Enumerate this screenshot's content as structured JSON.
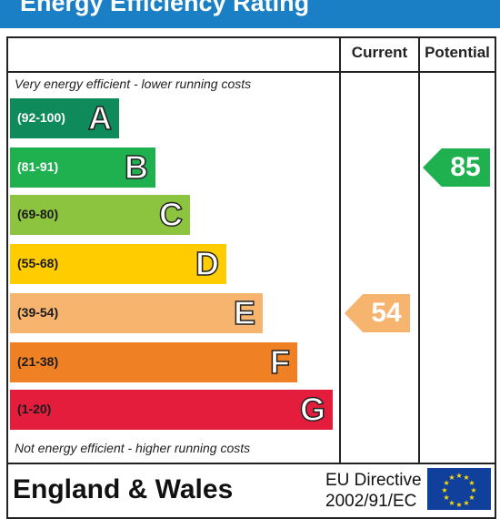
{
  "header": {
    "title": "Energy Efficiency Rating"
  },
  "columns": {
    "current": "Current",
    "potential": "Potential"
  },
  "notes": {
    "top": "Very energy efficient - lower running costs",
    "bottom": "Not energy efficient - higher running costs"
  },
  "bands": [
    {
      "range": "(92-100)",
      "letter": "A",
      "color": "#0f8a5b",
      "light_text": true
    },
    {
      "range": "(81-91)",
      "letter": "B",
      "color": "#1fb14f",
      "light_text": true
    },
    {
      "range": "(69-80)",
      "letter": "C",
      "color": "#8cc43f",
      "light_text": false
    },
    {
      "range": "(55-68)",
      "letter": "D",
      "color": "#ffcc00",
      "light_text": false
    },
    {
      "range": "(39-54)",
      "letter": "E",
      "color": "#f7b46f",
      "light_text": false
    },
    {
      "range": "(21-38)",
      "letter": "F",
      "color": "#ef8023",
      "light_text": false
    },
    {
      "range": "(1-20)",
      "letter": "G",
      "color": "#e31d3b",
      "light_text": false
    }
  ],
  "ratings": {
    "current": {
      "value": "54",
      "band": "E",
      "color": "#f7b46f"
    },
    "potential": {
      "value": "85",
      "band": "B",
      "color": "#1fb14f"
    }
  },
  "footer": {
    "region": "England & Wales",
    "directive_line1": "EU Directive",
    "directive_line2": "2002/91/EC",
    "flag_icon": "eu-flag-icon",
    "flag_color": "#103f9c",
    "star_color": "#ffdd00"
  }
}
